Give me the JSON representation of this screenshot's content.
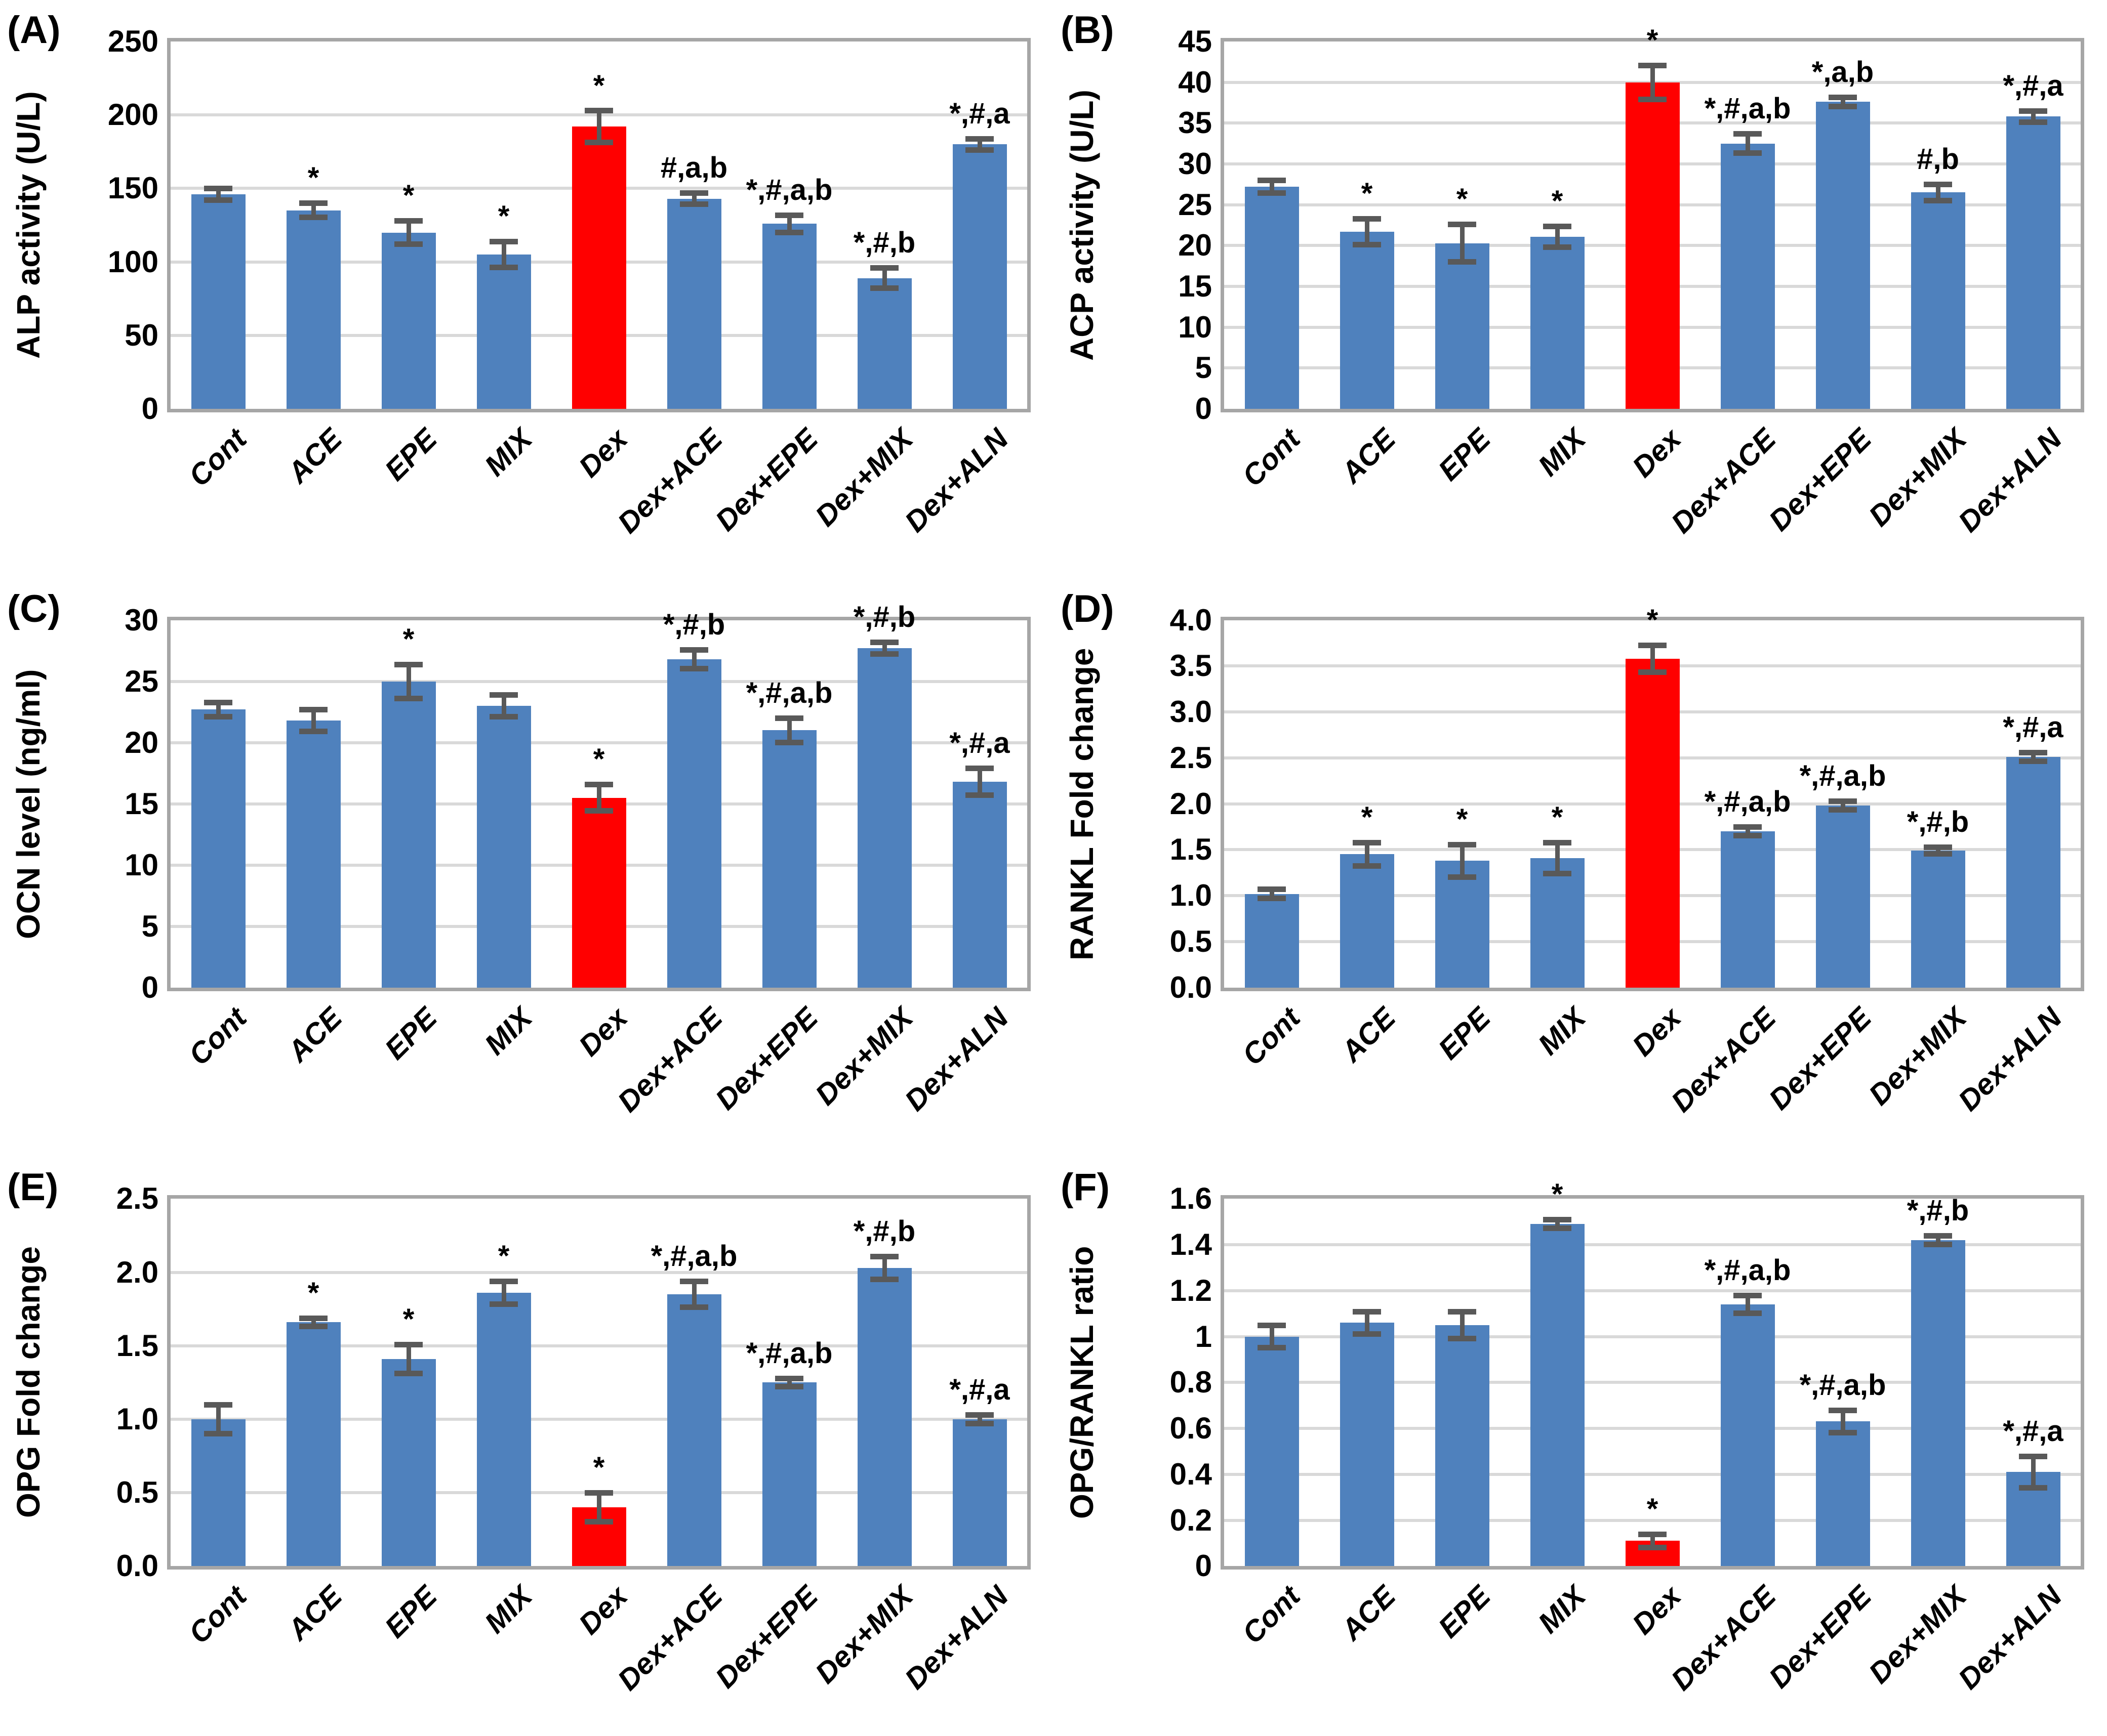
{
  "colors": {
    "bar_blue": "#4F81BD",
    "bar_red": "#FF0000",
    "error_bar": "#595959",
    "gridline": "#D9D9D9",
    "plot_border": "#A6A6A6",
    "text": "#000000"
  },
  "chart_data": [
    {
      "panel_label": "(A)",
      "type": "bar",
      "title": "",
      "xlabel": "",
      "ylabel": "ALP activity (U/L)",
      "ylim": [
        0,
        250
      ],
      "ytick_step": 50,
      "ytick_decimals": 0,
      "ytick_trim": false,
      "grid": true,
      "categories": [
        "Cont",
        "ACE",
        "EPE",
        "MIX",
        "Dex",
        "Dex+ACE",
        "Dex+EPE",
        "Dex+MIX",
        "Dex+ALN"
      ],
      "values": [
        146,
        135,
        120,
        105,
        192,
        143,
        126,
        89,
        180
      ],
      "errors": [
        4,
        5,
        8,
        9,
        11,
        4,
        6,
        7,
        4
      ],
      "annotations": [
        "",
        "*",
        "*",
        "*",
        "*",
        "#,a,b",
        "*,#,a,b",
        "*,#,b",
        "*,#,a"
      ],
      "highlight_index": 4
    },
    {
      "panel_label": "(B)",
      "type": "bar",
      "title": "",
      "xlabel": "",
      "ylabel": "ACP activity (U/L)",
      "ylim": [
        0,
        45
      ],
      "ytick_step": 5,
      "ytick_decimals": 0,
      "ytick_trim": false,
      "grid": true,
      "categories": [
        "Cont",
        "ACE",
        "EPE",
        "MIX",
        "Dex",
        "Dex+ACE",
        "Dex+EPE",
        "Dex+MIX",
        "Dex+ALN"
      ],
      "values": [
        27.2,
        21.7,
        20.3,
        21.1,
        40,
        32.5,
        37.6,
        26.5,
        35.8
      ],
      "errors": [
        0.8,
        1.6,
        2.3,
        1.3,
        2.1,
        1.2,
        0.6,
        1.0,
        0.7
      ],
      "annotations": [
        "",
        "*",
        "*",
        "*",
        "*",
        "*,#,a,b",
        "*,a,b",
        "#,b",
        "*,#,a"
      ],
      "highlight_index": 4
    },
    {
      "panel_label": "(C)",
      "type": "bar",
      "title": "",
      "xlabel": "",
      "ylabel": "OCN level (ng/ml)",
      "ylim": [
        0,
        30
      ],
      "ytick_step": 5,
      "ytick_decimals": 0,
      "ytick_trim": false,
      "grid": true,
      "categories": [
        "Cont",
        "ACE",
        "EPE",
        "MIX",
        "Dex",
        "Dex+ACE",
        "Dex+EPE",
        "Dex+MIX",
        "Dex+ALN"
      ],
      "values": [
        22.7,
        21.8,
        25,
        23,
        15.5,
        26.8,
        21,
        27.7,
        16.8
      ],
      "errors": [
        0.6,
        0.9,
        1.4,
        0.9,
        1.1,
        0.8,
        1.0,
        0.5,
        1.1
      ],
      "annotations": [
        "",
        "",
        "*",
        "",
        "*",
        "*,#,b",
        "*,#,a,b",
        "*,#,b",
        "*,#,a"
      ],
      "highlight_index": 4
    },
    {
      "panel_label": "(D)",
      "type": "bar",
      "title": "",
      "xlabel": "",
      "ylabel": "RANKL Fold change",
      "ylim": [
        0,
        4.0
      ],
      "ytick_step": 0.5,
      "ytick_decimals": 1,
      "ytick_trim": false,
      "grid": true,
      "categories": [
        "Cont",
        "ACE",
        "EPE",
        "MIX",
        "Dex",
        "Dex+ACE",
        "Dex+EPE",
        "Dex+MIX",
        "Dex+ALN"
      ],
      "values": [
        1.02,
        1.45,
        1.38,
        1.41,
        3.58,
        1.7,
        1.98,
        1.49,
        2.51
      ],
      "errors": [
        0.05,
        0.13,
        0.18,
        0.17,
        0.15,
        0.05,
        0.05,
        0.04,
        0.05
      ],
      "annotations": [
        "",
        "*",
        "*",
        "*",
        "*",
        "*,#,a,b",
        "*,#,a,b",
        "*,#,b",
        "*,#,a"
      ],
      "highlight_index": 4
    },
    {
      "panel_label": "(E)",
      "type": "bar",
      "title": "",
      "xlabel": "",
      "ylabel": "OPG Fold change",
      "ylim": [
        0,
        2.5
      ],
      "ytick_step": 0.5,
      "ytick_decimals": 1,
      "ytick_trim": false,
      "grid": true,
      "categories": [
        "Cont",
        "ACE",
        "EPE",
        "MIX",
        "Dex",
        "Dex+ACE",
        "Dex+EPE",
        "Dex+MIX",
        "Dex+ALN"
      ],
      "values": [
        1.0,
        1.66,
        1.41,
        1.86,
        0.4,
        1.85,
        1.25,
        2.03,
        1.0
      ],
      "errors": [
        0.1,
        0.03,
        0.1,
        0.08,
        0.1,
        0.09,
        0.03,
        0.08,
        0.03
      ],
      "annotations": [
        "",
        "*",
        "*",
        "*",
        "*",
        "*,#,a,b",
        "*,#,a,b",
        "*,#,b",
        "*,#,a"
      ],
      "highlight_index": 4
    },
    {
      "panel_label": "(F)",
      "type": "bar",
      "title": "",
      "xlabel": "",
      "ylabel": "OPG/RANKL ratio",
      "ylim": [
        0,
        1.6
      ],
      "ytick_step": 0.2,
      "ytick_decimals": 1,
      "ytick_trim": true,
      "grid": true,
      "categories": [
        "Cont",
        "ACE",
        "EPE",
        "MIX",
        "Dex",
        "Dex+ACE",
        "Dex+EPE",
        "Dex+MIX",
        "Dex+ALN"
      ],
      "values": [
        1.0,
        1.06,
        1.05,
        1.49,
        0.11,
        1.14,
        0.63,
        1.42,
        0.41
      ],
      "errors": [
        0.05,
        0.05,
        0.06,
        0.02,
        0.03,
        0.04,
        0.05,
        0.02,
        0.07
      ],
      "annotations": [
        "",
        "",
        "",
        "*",
        "*",
        "*,#,a,b",
        "*,#,a,b",
        "*,#,b",
        "*,#,a"
      ],
      "highlight_index": 4
    }
  ]
}
